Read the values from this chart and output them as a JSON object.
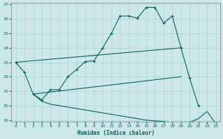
{
  "xlabel": "Humidex (Indice chaleur)",
  "bg_color": "#cde8e8",
  "line_color": "#005f5f",
  "grid_color": "#aad4d4",
  "xlim": [
    -0.5,
    23.5
  ],
  "ylim": [
    18.9,
    27.1
  ],
  "xticks": [
    0,
    1,
    2,
    3,
    4,
    5,
    6,
    7,
    8,
    9,
    10,
    11,
    12,
    13,
    14,
    15,
    16,
    17,
    18,
    19,
    20,
    21,
    22,
    23
  ],
  "yticks": [
    19,
    20,
    21,
    22,
    23,
    24,
    25,
    26,
    27
  ],
  "curve1_x": [
    0,
    1,
    2,
    3,
    4,
    5,
    6,
    7,
    8,
    9,
    10,
    11,
    12,
    13,
    14,
    15,
    16,
    17,
    18,
    19,
    20,
    21
  ],
  "curve1_y": [
    23.0,
    22.3,
    20.8,
    20.4,
    21.1,
    21.1,
    22.0,
    22.5,
    23.05,
    23.1,
    24.0,
    25.0,
    26.2,
    26.2,
    26.05,
    26.8,
    26.8,
    25.7,
    26.2,
    24.0,
    21.9,
    20.0
  ],
  "line2_x": [
    0,
    19
  ],
  "line2_y": [
    23.0,
    24.0
  ],
  "line3_x": [
    2,
    19
  ],
  "line3_y": [
    20.8,
    22.0
  ],
  "line4_x": [
    2,
    3,
    4,
    5,
    6,
    7,
    8,
    9,
    10,
    11,
    12,
    13,
    14,
    15,
    16,
    17,
    18,
    19,
    20,
    21,
    22,
    23
  ],
  "line4_y": [
    20.8,
    20.3,
    20.1,
    20.0,
    19.9,
    19.8,
    19.7,
    19.6,
    19.5,
    19.4,
    19.3,
    19.2,
    19.1,
    19.0,
    18.95,
    18.9,
    18.85,
    18.8,
    18.85,
    19.1,
    19.6,
    18.75
  ]
}
